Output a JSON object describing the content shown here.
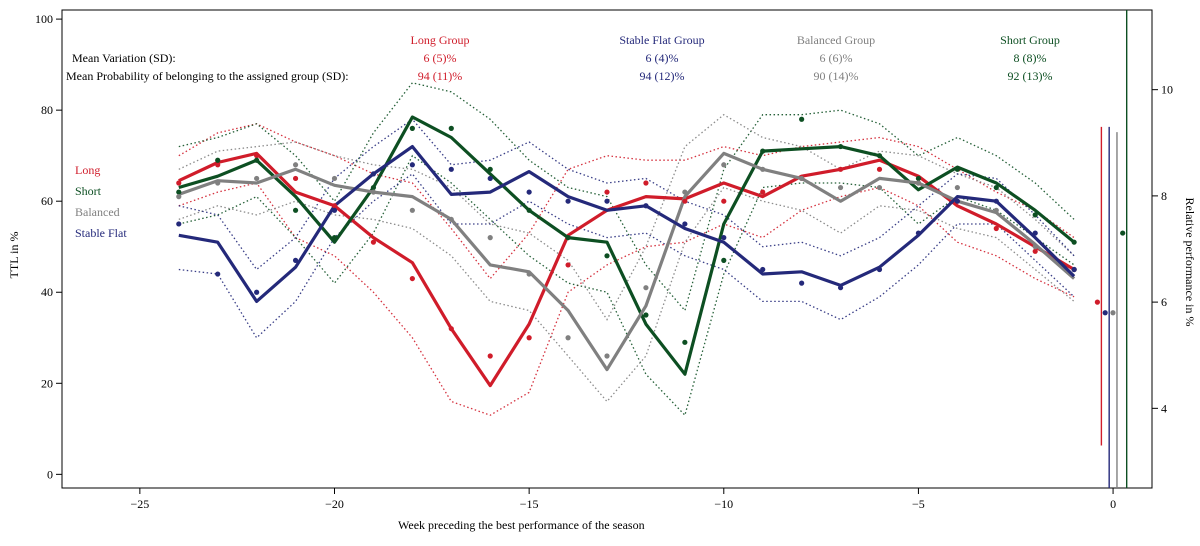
{
  "chart_data": {
    "type": "line",
    "xlabel": "Week preceding the best performance of the season",
    "ylabel": "TTL in %",
    "ylabel_right": "Relative performance in %",
    "xlim": [
      -27,
      1
    ],
    "ylim": [
      -3,
      102
    ],
    "ylim_right": [
      2.5,
      11.5
    ],
    "x_ticks": [
      -25,
      -20,
      -15,
      -10,
      -5,
      0
    ],
    "x_tick_labels": [
      "−25",
      "−20",
      "−15",
      "−10",
      "−5",
      "0"
    ],
    "y_ticks": [
      0,
      20,
      40,
      60,
      80,
      100
    ],
    "y_tick_labels": [
      "0",
      "20",
      "40",
      "60",
      "80",
      "100"
    ],
    "y_right_ticks": [
      4,
      6,
      8,
      10
    ],
    "y_right_tick_labels": [
      "4",
      "6",
      "8",
      "10"
    ],
    "stats_labels": {
      "variation": "Mean Variation (SD):",
      "probability": "Mean Probability of belonging to the assigned group (SD):"
    },
    "x": [
      -24,
      -23,
      -22,
      -21,
      -20,
      -19,
      -18,
      -17,
      -16,
      -15,
      -14,
      -13,
      -12,
      -11,
      -10,
      -9,
      -8,
      -7,
      -6,
      -5,
      -4,
      -3,
      -2,
      -1
    ],
    "series": [
      {
        "name": "Long",
        "group_title": "Long Group",
        "variation": "6 (5)%",
        "probability": "94 (11)%",
        "color": "#d01c2a",
        "values": [
          64.5,
          68.5,
          70.5,
          62.0,
          59.0,
          52.0,
          46.5,
          32.0,
          19.5,
          33.0,
          52.5,
          58.0,
          61.0,
          60.5,
          64.0,
          61.0,
          65.5,
          67.0,
          69.0,
          65.5,
          59.0,
          55.0,
          50.0,
          45.0
        ],
        "upper": [
          70,
          75,
          77,
          73,
          70,
          66,
          64,
          54,
          43,
          53,
          67,
          70,
          69,
          69,
          72,
          70,
          72,
          73,
          74,
          72,
          67,
          62,
          58,
          52
        ],
        "lower": [
          59,
          62,
          64,
          52,
          48,
          40,
          30,
          16,
          13,
          18,
          40,
          46,
          50,
          51,
          55,
          52,
          58,
          61,
          63,
          59,
          51,
          48,
          43,
          39
        ],
        "points": [
          64.0,
          68.0,
          70.0,
          65.0,
          59.0,
          51.0,
          43.0,
          32.0,
          26.0,
          30.0,
          46.0,
          62.0,
          64.0,
          60.0,
          60.0,
          62.0,
          65.0,
          67.0,
          67.0,
          64.0,
          60.0,
          54.0,
          49.0,
          45.0
        ],
        "perf_x": -0.3,
        "perf_mean": 6.0,
        "perf_upper": 9.3,
        "perf_lower": 3.3
      },
      {
        "name": "Short",
        "group_title": "Short Group",
        "variation": "8 (8)%",
        "probability": "92 (13)%",
        "color": "#0d4f22",
        "values": [
          63.0,
          65.5,
          69.0,
          61.0,
          51.0,
          63.0,
          78.5,
          74.0,
          66.0,
          58.0,
          52.0,
          51.0,
          33.0,
          22.0,
          55.0,
          71.0,
          71.5,
          72.0,
          70.0,
          62.5,
          67.5,
          64.0,
          58.0,
          51.0
        ],
        "upper": [
          72,
          74,
          77,
          70,
          60,
          75,
          86,
          84,
          78,
          69,
          63,
          61,
          46,
          36,
          67,
          79,
          79,
          80,
          77,
          70,
          74,
          70,
          64,
          56
        ],
        "lower": [
          55,
          57,
          61,
          52,
          42,
          53,
          70,
          64,
          56,
          48,
          42,
          40,
          22,
          13,
          44,
          63,
          64,
          64,
          63,
          55,
          61,
          58,
          52,
          46
        ],
        "points": [
          62.0,
          69.0,
          69.0,
          58.0,
          52.0,
          63.0,
          76.0,
          76.0,
          67.0,
          58.0,
          52.0,
          48.0,
          35.0,
          29.0,
          47.0,
          71.0,
          78.0,
          72.0,
          70.0,
          65.0,
          67.0,
          63.0,
          57.0,
          51.0
        ],
        "perf_x": 0.35,
        "perf_mean": 7.3,
        "perf_upper": 11.5,
        "perf_lower": 2.5
      },
      {
        "name": "Balanced",
        "group_title": "Balanced Group",
        "variation": "6 (6)%",
        "probability": "90 (14)%",
        "color": "#808080",
        "values": [
          61.5,
          64.5,
          64.0,
          67.0,
          63.5,
          62.0,
          61.0,
          56.0,
          46.0,
          44.5,
          36.0,
          23.0,
          37.0,
          61.0,
          70.5,
          67.0,
          65.0,
          60.0,
          65.0,
          64.0,
          60.0,
          57.5,
          50.5,
          43.0
        ],
        "upper": [
          67,
          71,
          72,
          73,
          70,
          68,
          67,
          63,
          55,
          53,
          47,
          34,
          50,
          72,
          79,
          74,
          72,
          67,
          71,
          70,
          66,
          63,
          56,
          48
        ],
        "lower": [
          56,
          59,
          57,
          60,
          57,
          56,
          54,
          48,
          38,
          36,
          26,
          16,
          26,
          51,
          63,
          60,
          58,
          53,
          59,
          58,
          54,
          52,
          45,
          38
        ],
        "points": [
          61.0,
          64.0,
          65.0,
          68.0,
          65.0,
          62.0,
          58.0,
          56.0,
          52.0,
          44.0,
          30.0,
          26.0,
          41.0,
          62.0,
          68.0,
          67.0,
          65.0,
          63.0,
          63.0,
          64.0,
          63.0,
          58.0,
          50.0,
          45.0
        ],
        "perf_x": 0.1,
        "perf_mean": 5.8,
        "perf_upper": 9.2,
        "perf_lower": 2.5
      },
      {
        "name": "Stable Flat",
        "group_title": "Stable Flat Group",
        "variation": "6 (4)%",
        "probability": "94 (12)%",
        "color": "#24297a",
        "values": [
          52.5,
          51.0,
          38.0,
          45.5,
          59.0,
          66.0,
          72.0,
          61.5,
          62.0,
          66.5,
          61.0,
          58.0,
          59.0,
          54.0,
          51.0,
          44.0,
          44.5,
          41.5,
          45.5,
          52.5,
          61.0,
          60.0,
          52.0,
          43.5
        ],
        "upper": [
          59,
          57,
          45,
          52,
          65,
          72,
          78,
          68,
          69,
          73,
          67,
          64,
          65,
          60,
          57,
          50,
          51,
          48,
          52,
          59,
          66,
          65,
          57,
          48
        ],
        "lower": [
          45,
          44,
          30,
          38,
          52,
          60,
          66,
          55,
          55,
          60,
          55,
          52,
          53,
          48,
          45,
          38,
          38,
          34,
          39,
          46,
          55,
          55,
          47,
          39
        ],
        "points": [
          55.0,
          44.0,
          40.0,
          47.0,
          58.0,
          66.0,
          68.0,
          67.0,
          65.0,
          62.0,
          60.0,
          60.0,
          59.0,
          55.0,
          52.0,
          45.0,
          42.0,
          41.0,
          45.0,
          53.0,
          60.0,
          60.0,
          53.0,
          45.0
        ],
        "perf_x": -0.1,
        "perf_mean": 5.8,
        "perf_upper": 9.3,
        "perf_lower": 2.5
      }
    ]
  }
}
